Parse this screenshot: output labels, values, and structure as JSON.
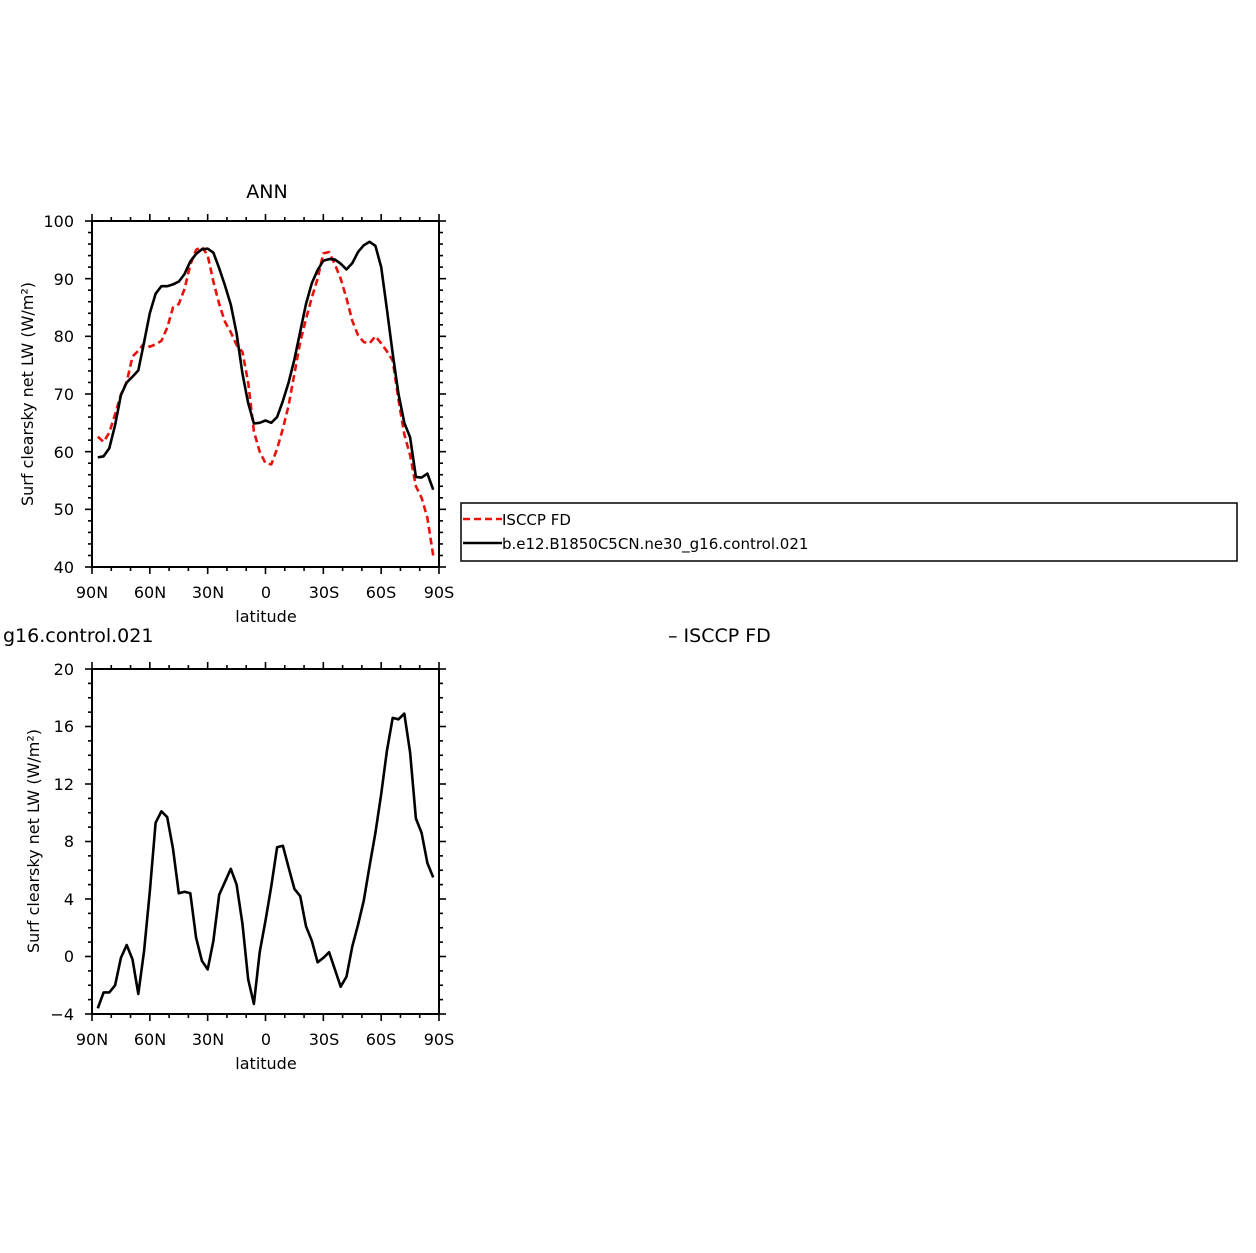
{
  "colors": {
    "obs": "#e8120c",
    "model": "#000000"
  },
  "top": {
    "title": "ANN",
    "ylabel": "Surf clearsky net LW (W/m²)",
    "xlabel": "latitude",
    "xticks": [
      "90N",
      "60N",
      "30N",
      "0",
      "30S",
      "60S",
      "90S"
    ],
    "yticks": [
      "40",
      "50",
      "60",
      "70",
      "80",
      "90",
      "100"
    ],
    "legend": {
      "obs_label": "ISCCP FD",
      "model_label": "b.e12.B1850C5CN.ne30_g16.control.021"
    }
  },
  "bottom": {
    "left_title": "g16.control.021",
    "right_title": "– ISCCP FD",
    "ylabel": "Surf clearsky net LW (W/m²)",
    "xlabel": "latitude",
    "xticks": [
      "90N",
      "60N",
      "30N",
      "0",
      "30S",
      "60S",
      "90S"
    ],
    "yticks": [
      "−4",
      "0",
      "4",
      "8",
      "12",
      "16",
      "20"
    ]
  },
  "chart_data": [
    {
      "type": "line",
      "title": "ANN",
      "xlabel": "latitude",
      "ylabel": "Surf clearsky net LW (W/m²)",
      "xlim": [
        90,
        -90
      ],
      "ylim": [
        40,
        100
      ],
      "legend_position": "right of plot",
      "x": [
        87,
        84,
        81,
        78,
        75,
        72,
        69,
        66,
        63,
        60,
        57,
        54,
        51,
        48,
        45,
        42,
        39,
        36,
        33,
        30,
        27,
        24,
        21,
        18,
        15,
        12,
        9,
        6,
        3,
        0,
        -3,
        -6,
        -9,
        -12,
        -15,
        -18,
        -21,
        -24,
        -27,
        -30,
        -33,
        -36,
        -39,
        -42,
        -45,
        -48,
        -51,
        -54,
        -57,
        -60,
        -63,
        -66,
        -69,
        -72,
        -75,
        -78,
        -81,
        -84,
        -87
      ],
      "series": [
        {
          "name": "ISCCP FD",
          "style": "dashed",
          "values": [
            62.6,
            61.7,
            63.3,
            66.5,
            69.9,
            72.1,
            76.5,
            77.5,
            78.8,
            78.2,
            78.6,
            79.2,
            81.5,
            85.0,
            85.6,
            88.2,
            92.4,
            95.0,
            95.5,
            94.0,
            89.5,
            85.6,
            82.5,
            80.7,
            78.5,
            77.3,
            72.0,
            63.5,
            60.0,
            58.0,
            57.8,
            60.5,
            64.0,
            68.0,
            73.5,
            79.0,
            83.0,
            86.7,
            90.0,
            94.4,
            94.6,
            92.5,
            90.0,
            86.6,
            82.7,
            80.2,
            79.0,
            78.8,
            80.0,
            78.8,
            77.4,
            75.8,
            69.0,
            63.0,
            59.4,
            54.0,
            52.0,
            48.5,
            42.0
          ]
        },
        {
          "name": "b.e12.B1850C5CN.ne30_g16.control.021",
          "style": "solid",
          "values": [
            59.0,
            59.2,
            60.6,
            64.6,
            69.8,
            72.0,
            73.0,
            74.1,
            79.0,
            84.0,
            87.4,
            88.7,
            88.7,
            89.0,
            89.5,
            90.8,
            93.0,
            94.3,
            95.1,
            95.2,
            94.5,
            91.8,
            88.8,
            85.5,
            80.5,
            73.6,
            68.4,
            64.9,
            65.0,
            65.4,
            65.0,
            66.0,
            68.8,
            72.0,
            76.0,
            80.8,
            85.6,
            89.2,
            91.5,
            93.1,
            93.4,
            93.3,
            92.6,
            91.6,
            92.7,
            94.6,
            95.8,
            96.4,
            95.7,
            92.0,
            84.7,
            77.0,
            70.0,
            65.0,
            62.5,
            55.6,
            55.5,
            56.2,
            53.4
          ]
        }
      ]
    },
    {
      "type": "line",
      "title": "g16.control.021 – ISCCP FD",
      "xlabel": "latitude",
      "ylabel": "Surf clearsky net LW (W/m²)",
      "xlim": [
        90,
        -90
      ],
      "ylim": [
        -4,
        20
      ],
      "x": [
        87,
        84,
        81,
        78,
        75,
        72,
        69,
        66,
        63,
        60,
        57,
        54,
        51,
        48,
        45,
        42,
        39,
        36,
        33,
        30,
        27,
        24,
        21,
        18,
        15,
        12,
        9,
        6,
        3,
        0,
        -3,
        -6,
        -9,
        -12,
        -15,
        -18,
        -21,
        -24,
        -27,
        -30,
        -33,
        -36,
        -39,
        -42,
        -45,
        -48,
        -51,
        -54,
        -57,
        -60,
        -63,
        -66,
        -69,
        -72,
        -75,
        -78,
        -81,
        -84,
        -87
      ],
      "series": [
        {
          "name": "",
          "style": "solid",
          "values": [
            -3.6,
            -2.5,
            -2.5,
            -2.0,
            -0.1,
            0.8,
            -0.2,
            -2.6,
            0.4,
            4.5,
            9.3,
            10.1,
            9.7,
            7.5,
            4.4,
            4.5,
            4.4,
            1.3,
            -0.3,
            -0.9,
            1.1,
            4.3,
            5.2,
            6.1,
            5.0,
            2.3,
            -1.6,
            -3.3,
            0.3,
            2.5,
            4.9,
            7.6,
            7.7,
            6.2,
            4.7,
            4.2,
            2.1,
            1.1,
            -0.4,
            -0.1,
            0.3,
            -0.9,
            -2.1,
            -1.4,
            0.7,
            2.2,
            3.9,
            6.3,
            8.6,
            11.3,
            14.3,
            16.6,
            16.5,
            16.9,
            14.2,
            9.6,
            8.6,
            6.5,
            5.5
          ]
        }
      ]
    }
  ]
}
